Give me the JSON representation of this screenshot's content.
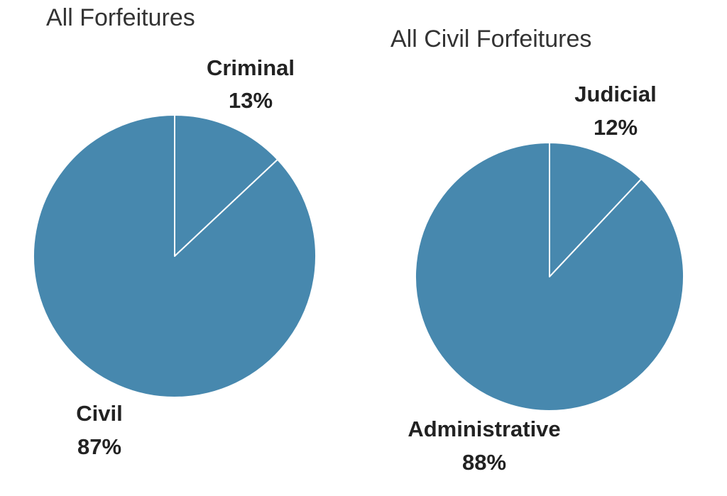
{
  "colors": {
    "slice_fill": "#4788ae",
    "slice_stroke": "#ffffff",
    "title_text": "#333333",
    "label_text": "#222222",
    "background": "#ffffff"
  },
  "chart_data": [
    {
      "type": "pie",
      "title": "All Forfeitures",
      "slices": [
        {
          "label": "Criminal",
          "value": 13,
          "display": "13%"
        },
        {
          "label": "Civil",
          "value": 87,
          "display": "87%"
        }
      ]
    },
    {
      "type": "pie",
      "title": "All Civil Forfeitures",
      "slices": [
        {
          "label": "Judicial",
          "value": 12,
          "display": "12%"
        },
        {
          "label": "Administrative",
          "value": 88,
          "display": "88%"
        }
      ]
    }
  ]
}
